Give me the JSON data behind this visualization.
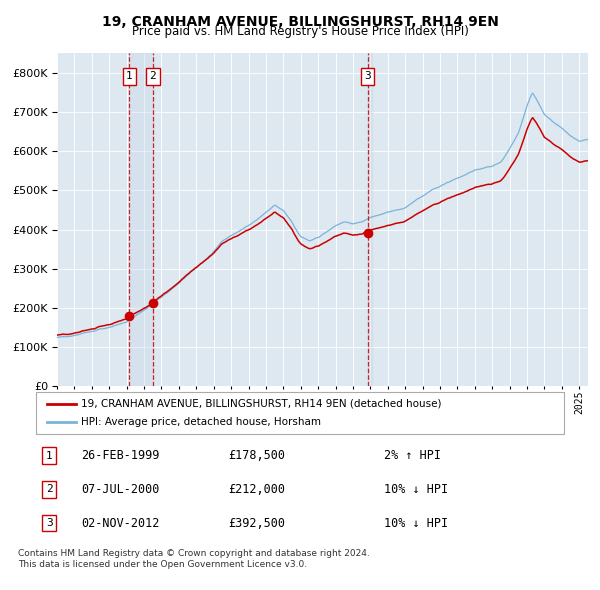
{
  "title": "19, CRANHAM AVENUE, BILLINGSHURST, RH14 9EN",
  "subtitle": "Price paid vs. HM Land Registry's House Price Index (HPI)",
  "legend_line1": "19, CRANHAM AVENUE, BILLINGSHURST, RH14 9EN (detached house)",
  "legend_line2": "HPI: Average price, detached house, Horsham",
  "footnote1": "Contains HM Land Registry data © Crown copyright and database right 2024.",
  "footnote2": "This data is licensed under the Open Government Licence v3.0.",
  "transactions": [
    {
      "num": "1",
      "date": "26-FEB-1999",
      "price": "£178,500",
      "hpi_pct": "2%",
      "hpi_dir": "↑"
    },
    {
      "num": "2",
      "date": "07-JUL-2000",
      "price": "£212,000",
      "hpi_pct": "10%",
      "hpi_dir": "↓"
    },
    {
      "num": "3",
      "date": "02-NOV-2012",
      "price": "£392,500",
      "hpi_pct": "10%",
      "hpi_dir": "↓"
    }
  ],
  "transaction_dates_decimal": [
    1999.15,
    2000.51,
    2012.84
  ],
  "transaction_prices": [
    178500,
    212000,
    392500
  ],
  "hpi_line_color": "#7ab4d8",
  "price_line_color": "#cc0000",
  "dot_color": "#cc0000",
  "dashed_line_color": "#cc0000",
  "shade_color": "#c8d8e8",
  "background_color": "#dde8f0",
  "ylim": [
    0,
    850000
  ],
  "yticks": [
    0,
    100000,
    200000,
    300000,
    400000,
    500000,
    600000,
    700000,
    800000
  ],
  "xmin": 1995.0,
  "xmax": 2025.5,
  "hpi_keypoints_x": [
    1995.0,
    1996.0,
    1997.0,
    1998.0,
    1999.0,
    2000.0,
    2001.0,
    2002.0,
    2003.0,
    2004.0,
    2004.5,
    2005.5,
    2006.5,
    2007.0,
    2007.5,
    2008.0,
    2008.5,
    2009.0,
    2009.5,
    2010.0,
    2010.5,
    2011.0,
    2011.5,
    2012.0,
    2012.5,
    2013.0,
    2014.0,
    2015.0,
    2016.0,
    2016.5,
    2017.0,
    2018.0,
    2019.0,
    2020.0,
    2020.5,
    2021.0,
    2021.5,
    2022.0,
    2022.3,
    2022.5,
    2023.0,
    2023.5,
    2024.0,
    2024.5,
    2025.0,
    2025.5
  ],
  "hpi_keypoints_y": [
    125000,
    132000,
    142000,
    155000,
    168000,
    195000,
    230000,
    265000,
    305000,
    345000,
    370000,
    395000,
    425000,
    445000,
    465000,
    450000,
    420000,
    385000,
    375000,
    385000,
    400000,
    415000,
    425000,
    420000,
    425000,
    435000,
    448000,
    460000,
    490000,
    505000,
    515000,
    535000,
    555000,
    565000,
    575000,
    610000,
    650000,
    720000,
    755000,
    740000,
    700000,
    680000,
    665000,
    645000,
    630000,
    635000
  ]
}
